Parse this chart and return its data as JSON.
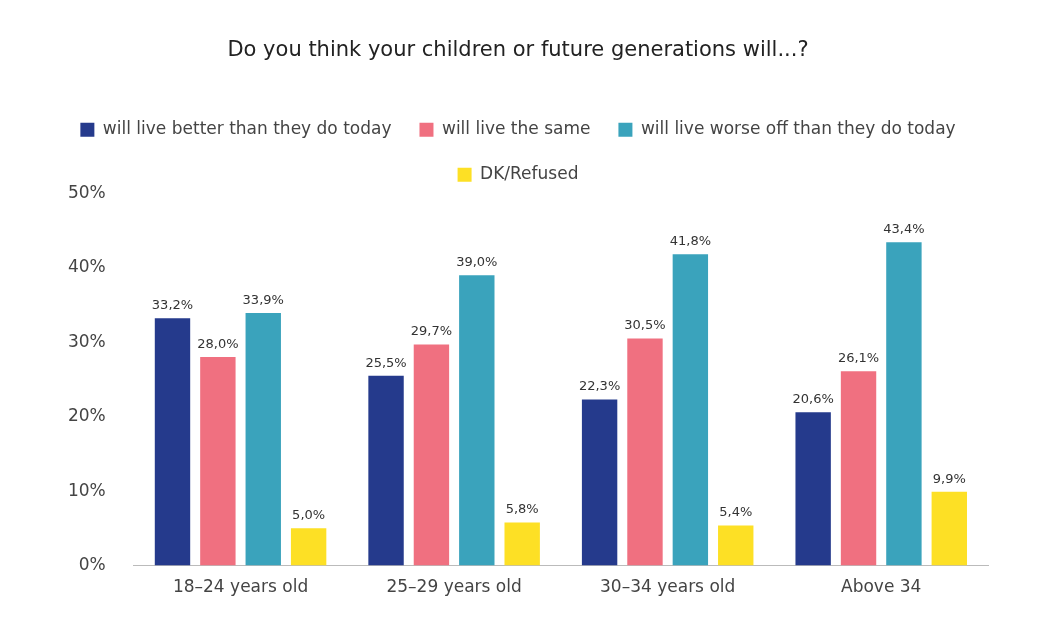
{
  "chart_data": {
    "type": "bar",
    "title": "Do you think your children or future generations will...?",
    "categories": [
      "18–24 years old",
      "25–29 years old",
      "30–34 years old",
      "Above 34"
    ],
    "series": [
      {
        "name": "will live better than they do today",
        "color": "#253a8c",
        "values": [
          33.2,
          25.5,
          22.3,
          20.6
        ],
        "value_labels": [
          "33,2%",
          "25,5%",
          "22,3%",
          "20,6%"
        ]
      },
      {
        "name": "will live the same",
        "color": "#f07080",
        "values": [
          28.0,
          29.7,
          30.5,
          26.1
        ],
        "value_labels": [
          "28,0%",
          "29,7%",
          "30,5%",
          "26,1%"
        ]
      },
      {
        "name": "will live worse off than they do today",
        "color": "#3aa3bc",
        "values": [
          33.9,
          39.0,
          41.8,
          43.4
        ],
        "value_labels": [
          "33,9%",
          "39,0%",
          "41,8%",
          "43,4%"
        ]
      },
      {
        "name": "DK/Refused",
        "color": "#fde025",
        "values": [
          5.0,
          5.8,
          5.4,
          9.9
        ],
        "value_labels": [
          "5,0%",
          "5,8%",
          "5,4%",
          "9,9%"
        ]
      }
    ],
    "ylim": [
      0,
      50
    ],
    "yticks": [
      {
        "value": 0,
        "label": "0%"
      },
      {
        "value": 10,
        "label": "10%"
      },
      {
        "value": 20,
        "label": "20%"
      },
      {
        "value": 30,
        "label": "30%"
      },
      {
        "value": 40,
        "label": "40%"
      },
      {
        "value": 50,
        "label": "50%"
      }
    ],
    "grid": false,
    "legend": "top"
  }
}
